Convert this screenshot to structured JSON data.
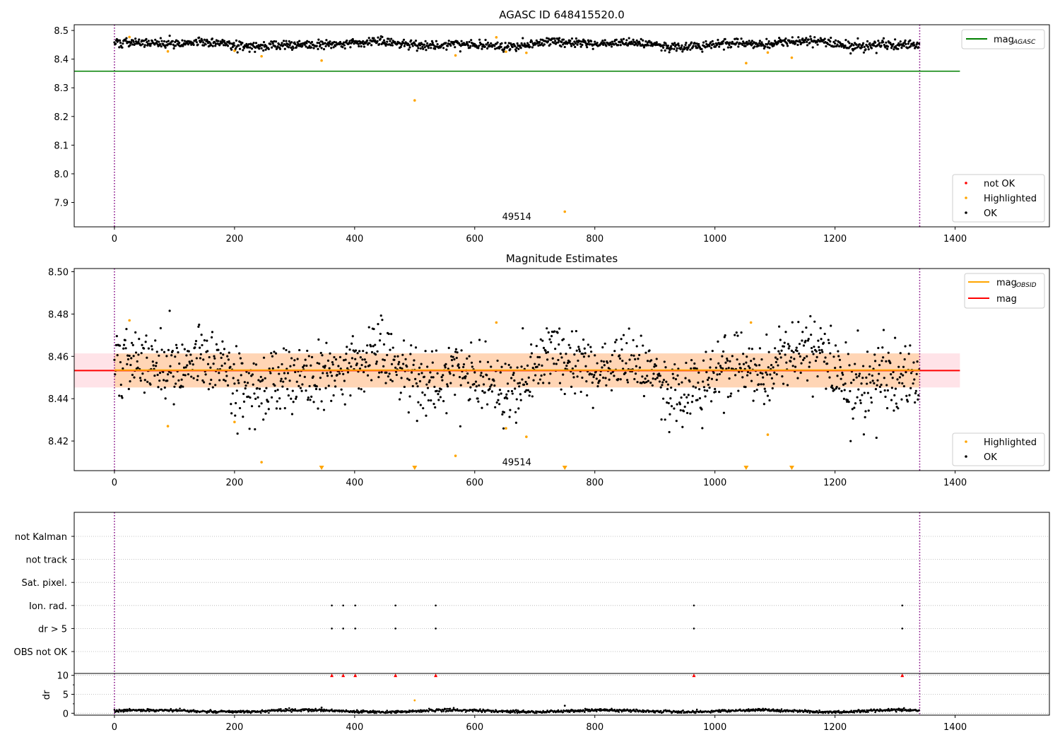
{
  "chart_data": [
    {
      "type": "scatter",
      "title": "AGASC ID 648415520.0",
      "xlim": [
        -67,
        1557
      ],
      "ylim": [
        7.815,
        8.52
      ],
      "xticks": [
        0,
        200,
        400,
        600,
        800,
        1000,
        1200,
        1400
      ],
      "yticks": [
        7.9,
        8.0,
        8.1,
        8.2,
        8.3,
        8.4,
        8.5
      ],
      "grid": false,
      "hlines": [
        {
          "name": "mag_AGASC",
          "y": 8.358,
          "x_range": [
            -67,
            1408
          ],
          "color": "#008000"
        }
      ],
      "vlines": [
        {
          "x": 0,
          "color": "#800080",
          "style": "dotted"
        },
        {
          "x": 1341,
          "color": "#800080",
          "style": "dotted"
        }
      ],
      "annotations": [
        {
          "text": "49514",
          "x": 670,
          "y": 7.85
        }
      ],
      "ok_series": {
        "name": "OK",
        "color": "#000000",
        "count": 1341,
        "x_range": [
          0,
          1341
        ],
        "mean": 8.453,
        "spread": 0.008
      },
      "highlighted": {
        "name": "Highlighted",
        "color": "#ffa500",
        "points": [
          [
            25,
            8.477
          ],
          [
            89,
            8.427
          ],
          [
            200,
            8.429
          ],
          [
            245,
            8.41
          ],
          [
            345,
            8.395
          ],
          [
            500,
            8.256
          ],
          [
            568,
            8.413
          ],
          [
            636,
            8.476
          ],
          [
            652,
            8.426
          ],
          [
            686,
            8.422
          ],
          [
            750,
            7.868
          ],
          [
            1052,
            8.386
          ],
          [
            1088,
            8.423
          ],
          [
            1128,
            8.405
          ]
        ]
      },
      "not_ok": {
        "name": "not OK",
        "color": "#ff0000",
        "points": []
      },
      "legends": [
        {
          "position": "top-right",
          "entries": [
            {
              "label": "mag",
              "sub": "AGASC",
              "type": "line",
              "color": "#008000"
            }
          ]
        },
        {
          "position": "bottom-right",
          "entries": [
            {
              "label": "not OK",
              "type": "point",
              "color": "#ff0000"
            },
            {
              "label": "Highlighted",
              "type": "point",
              "color": "#ffa500"
            },
            {
              "label": "OK",
              "type": "point",
              "color": "#000000"
            }
          ]
        }
      ]
    },
    {
      "type": "scatter",
      "title": "Magnitude Estimates",
      "xlim": [
        -67,
        1557
      ],
      "ylim": [
        8.406,
        8.5015
      ],
      "xticks": [
        0,
        200,
        400,
        600,
        800,
        1000,
        1200,
        1400
      ],
      "yticks": [
        8.42,
        8.44,
        8.46,
        8.48,
        8.5
      ],
      "grid": false,
      "hlines": [
        {
          "name": "mag",
          "y": 8.4533,
          "x_range": [
            -67,
            1408
          ],
          "color": "#ff0000"
        },
        {
          "name": "mag_OBSID",
          "y": 8.4535,
          "x_range": [
            0,
            1341
          ],
          "color": "#ffa500"
        }
      ],
      "bands": [
        {
          "y_range": [
            8.4453,
            8.4614
          ],
          "x_range": [
            -67,
            1408
          ],
          "color": "#ffc0cb"
        },
        {
          "y_range": [
            8.4453,
            8.4614
          ],
          "x_range": [
            0,
            1341
          ],
          "color": "#ffa500"
        }
      ],
      "vlines": [
        {
          "x": 0,
          "color": "#800080",
          "style": "dotted"
        },
        {
          "x": 1341,
          "color": "#800080",
          "style": "dotted"
        }
      ],
      "annotations": [
        {
          "text": "49514",
          "x": 670,
          "y": 8.4098
        }
      ],
      "ok_series": {
        "name": "OK",
        "color": "#000000",
        "count": 1341,
        "x_range": [
          0,
          1341
        ],
        "mean": 8.453,
        "spread": 0.008
      },
      "highlighted": {
        "name": "Highlighted",
        "color": "#ffa500",
        "points": [
          [
            25,
            8.477
          ],
          [
            89,
            8.427
          ],
          [
            200,
            8.429
          ],
          [
            245,
            8.41
          ],
          [
            568,
            8.413
          ],
          [
            636,
            8.476
          ],
          [
            652,
            8.426
          ],
          [
            686,
            8.422
          ],
          [
            1060,
            8.476
          ],
          [
            1088,
            8.423
          ]
        ]
      },
      "off_scale_markers": {
        "color": "#ffa500",
        "x": [
          345,
          500,
          750,
          1052,
          1128
        ]
      },
      "legends": [
        {
          "position": "top-right",
          "entries": [
            {
              "label": "mag",
              "sub": "OBSID",
              "type": "line",
              "color": "#ffa500"
            },
            {
              "label": "mag",
              "type": "line",
              "color": "#ff0000"
            }
          ]
        },
        {
          "position": "bottom-right",
          "entries": [
            {
              "label": "Highlighted",
              "type": "point",
              "color": "#ffa500"
            },
            {
              "label": "OK",
              "type": "point",
              "color": "#000000"
            }
          ]
        }
      ]
    },
    {
      "type": "scatter",
      "title": "",
      "xlim": [
        -67,
        1557
      ],
      "categories": [
        "not Kalman",
        "not track",
        "Sat. pixel.",
        "Ion. rad.",
        "dr > 5",
        "OBS not OK"
      ],
      "flags": {
        "not Kalman": [],
        "not track": [],
        "Sat. pixel.": [],
        "Ion. rad.": [
          362,
          381,
          401,
          468,
          535,
          965,
          1312
        ],
        "dr > 5": [
          362,
          381,
          401,
          468,
          535,
          965,
          1312
        ],
        "OBS not OK": []
      },
      "grid": true,
      "vlines": [
        {
          "x": 0,
          "color": "#800080",
          "style": "dotted"
        },
        {
          "x": 1341,
          "color": "#800080",
          "style": "dotted"
        }
      ]
    },
    {
      "type": "scatter",
      "title": "",
      "ylabel": "dr",
      "xlim": [
        -67,
        1557
      ],
      "ylim": [
        -0.5,
        10.5
      ],
      "xticks": [
        0,
        200,
        400,
        600,
        800,
        1000,
        1200,
        1400
      ],
      "yticks": [
        0,
        5,
        10
      ],
      "grid": true,
      "ok_series": {
        "name": "OK",
        "color": "#000000",
        "count": 1341,
        "x_range": [
          0,
          1341
        ],
        "mean": 0.6,
        "spread": 0.35
      },
      "extra_points": [
        {
          "x": 345,
          "y": 1.5,
          "color": "#000000"
        },
        {
          "x": 750,
          "y": 2.0,
          "color": "#000000"
        },
        {
          "x": 500,
          "y": 3.4,
          "color": "#ffa500"
        }
      ],
      "clipped_markers": {
        "y": 10,
        "color": "#ff0000",
        "x": [
          362,
          381,
          401,
          468,
          535,
          965,
          1312
        ]
      },
      "vlines": [
        {
          "x": 0,
          "color": "#800080",
          "style": "dotted"
        },
        {
          "x": 1341,
          "color": "#800080",
          "style": "dotted"
        }
      ]
    }
  ]
}
